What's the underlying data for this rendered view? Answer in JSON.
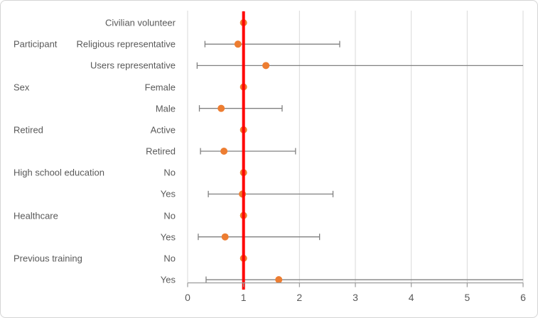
{
  "chart_data": {
    "type": "scatter",
    "subtype": "forest-plot",
    "title": "",
    "xlabel": "",
    "ylabel": "",
    "xlim": [
      0,
      6
    ],
    "x_ticks": [
      "0",
      "1",
      "2",
      "3",
      "4",
      "5",
      "6"
    ],
    "x_tick_values": [
      0,
      1,
      2,
      3,
      4,
      5,
      6
    ],
    "grid": "vertical-only",
    "legend": "none",
    "reference_line_x": 1,
    "groups": [
      {
        "label": "Participant",
        "anchor_row": 1
      },
      {
        "label": "Sex",
        "anchor_row": 3
      },
      {
        "label": "Retired",
        "anchor_row": 5
      },
      {
        "label": "High school education",
        "anchor_row": 7
      },
      {
        "label": "Healthcare",
        "anchor_row": 9
      },
      {
        "label": "Previous training",
        "anchor_row": 11
      }
    ],
    "rows": [
      {
        "group": "Participant",
        "label": "Civilian volunteer",
        "value": 1.0,
        "ci_low": null,
        "ci_high": null,
        "clipped_high": false
      },
      {
        "group": "Participant",
        "label": "Religious representative",
        "value": 0.9,
        "ci_low": 0.31,
        "ci_high": 2.72,
        "clipped_high": false
      },
      {
        "group": "Participant",
        "label": "Users representative",
        "value": 1.4,
        "ci_low": 0.17,
        "ci_high": 6.0,
        "clipped_high": true
      },
      {
        "group": "Sex",
        "label": "Female",
        "value": 1.0,
        "ci_low": null,
        "ci_high": null,
        "clipped_high": false
      },
      {
        "group": "Sex",
        "label": "Male",
        "value": 0.6,
        "ci_low": 0.21,
        "ci_high": 1.69,
        "clipped_high": false
      },
      {
        "group": "Retired",
        "label": "Active",
        "value": 1.0,
        "ci_low": null,
        "ci_high": null,
        "clipped_high": false
      },
      {
        "group": "Retired",
        "label": "Retired",
        "value": 0.65,
        "ci_low": 0.23,
        "ci_high": 1.93,
        "clipped_high": false
      },
      {
        "group": "High school education",
        "label": "No",
        "value": 1.0,
        "ci_low": null,
        "ci_high": null,
        "clipped_high": false
      },
      {
        "group": "High school education",
        "label": "Yes",
        "value": 0.98,
        "ci_low": 0.37,
        "ci_high": 2.6,
        "clipped_high": false
      },
      {
        "group": "Healthcare",
        "label": "No",
        "value": 1.0,
        "ci_low": null,
        "ci_high": null,
        "clipped_high": false
      },
      {
        "group": "Healthcare",
        "label": "Yes",
        "value": 0.67,
        "ci_low": 0.19,
        "ci_high": 2.36,
        "clipped_high": false
      },
      {
        "group": "Previous training",
        "label": "No",
        "value": 1.0,
        "ci_low": null,
        "ci_high": null,
        "clipped_high": false
      },
      {
        "group": "Previous training",
        "label": "Yes",
        "value": 1.63,
        "ci_low": 0.33,
        "ci_high": 6.0,
        "clipped_high": true
      }
    ],
    "colors": {
      "point": "#ED7D31",
      "reference_line": "#FF0000",
      "whisker": "#808080",
      "gridline": "#D9D9D9",
      "axis": "#9B9B9B",
      "text": "#595959"
    }
  }
}
